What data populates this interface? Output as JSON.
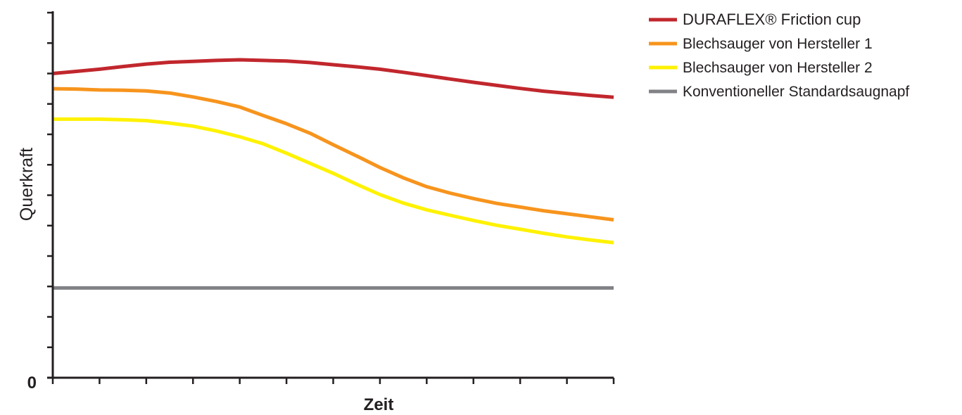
{
  "chart_data": {
    "type": "line",
    "title": "",
    "xlabel": "Zeit",
    "ylabel": "Querkraft",
    "y_tick_label": "0",
    "x_tick_count": 13,
    "y_tick_count": 13,
    "xlim": [
      0,
      12
    ],
    "ylim": [
      0,
      12
    ],
    "grid": false,
    "legend_position": "top-right",
    "x": [
      0,
      0.5,
      1,
      1.5,
      2,
      2.5,
      3,
      3.5,
      4,
      4.5,
      5,
      5.5,
      6,
      6.5,
      7,
      7.5,
      8,
      8.5,
      9,
      9.5,
      10,
      10.5,
      11,
      11.5,
      12
    ],
    "series": [
      {
        "name": "DURAFLEX® Friction cup",
        "color": "#c1272d",
        "values": [
          10.0,
          10.07,
          10.14,
          10.23,
          10.31,
          10.37,
          10.4,
          10.43,
          10.45,
          10.43,
          10.41,
          10.36,
          10.29,
          10.22,
          10.14,
          10.04,
          9.93,
          9.82,
          9.71,
          9.61,
          9.51,
          9.42,
          9.35,
          9.28,
          9.22
        ]
      },
      {
        "name": "Blechsauger von Hersteller 1",
        "color": "#f7941d",
        "values": [
          9.5,
          9.49,
          9.46,
          9.45,
          9.43,
          9.36,
          9.23,
          9.08,
          8.9,
          8.62,
          8.35,
          8.04,
          7.66,
          7.29,
          6.91,
          6.57,
          6.28,
          6.07,
          5.89,
          5.73,
          5.61,
          5.49,
          5.39,
          5.29,
          5.19
        ]
      },
      {
        "name": "Blechsauger von Hersteller 2",
        "color": "#fff200",
        "values": [
          8.5,
          8.5,
          8.5,
          8.48,
          8.45,
          8.37,
          8.27,
          8.11,
          7.92,
          7.69,
          7.38,
          7.05,
          6.72,
          6.36,
          6.02,
          5.74,
          5.52,
          5.34,
          5.17,
          5.01,
          4.88,
          4.75,
          4.63,
          4.53,
          4.44
        ]
      },
      {
        "name": "Konventioneller Standardsaugnapf",
        "color": "#808285",
        "values": [
          2.95,
          2.95,
          2.95,
          2.95,
          2.95,
          2.95,
          2.95,
          2.95,
          2.95,
          2.95,
          2.95,
          2.95,
          2.95,
          2.95,
          2.95,
          2.95,
          2.95,
          2.95,
          2.95,
          2.95,
          2.95,
          2.95,
          2.95,
          2.95,
          2.95
        ]
      }
    ]
  }
}
